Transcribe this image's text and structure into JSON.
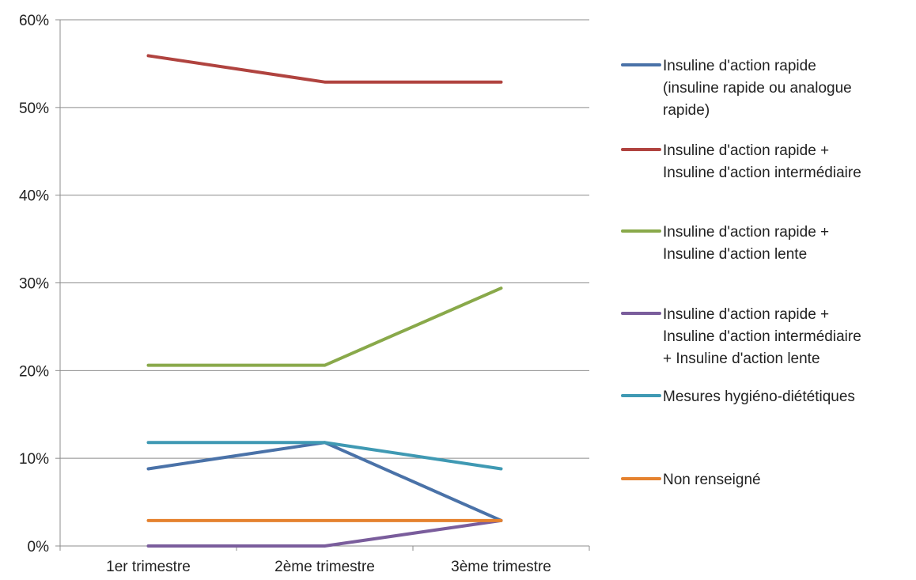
{
  "chart_data": {
    "type": "line",
    "title": "",
    "xlabel": "",
    "ylabel": "",
    "categories": [
      "1er trimestre",
      "2ème trimestre",
      "3ème trimestre"
    ],
    "ylim": [
      0,
      60
    ],
    "yticks": [
      "0%",
      "10%",
      "20%",
      "30%",
      "40%",
      "50%",
      "60%"
    ],
    "grid": true,
    "legend_position": "right",
    "series": [
      {
        "name": "Insuline d'action rapide (insuline rapide ou analogue rapide)",
        "legend_lines": [
          "Insuline d'action rapide",
          "(insuline rapide ou analogue",
          "rapide)"
        ],
        "color": "#4a72a8",
        "values": [
          8.8,
          11.8,
          2.9
        ]
      },
      {
        "name": "Insuline d'action rapide + Insuline d'action intermédiaire",
        "legend_lines": [
          "Insuline d'action rapide +",
          "Insuline d'action intermédiaire"
        ],
        "color": "#b0433f",
        "values": [
          55.9,
          52.9,
          52.9
        ]
      },
      {
        "name": "Insuline d'action rapide + Insuline d'action lente",
        "legend_lines": [
          "Insuline d'action rapide +",
          "Insuline d'action lente"
        ],
        "color": "#89a94a",
        "values": [
          20.6,
          20.6,
          29.4
        ]
      },
      {
        "name": "Insuline d'action rapide + Insuline d'action intermédiaire + Insuline d'action lente",
        "legend_lines": [
          "Insuline d'action rapide +",
          "Insuline d'action intermédiaire",
          "+ Insuline d'action lente"
        ],
        "color": "#7a5d9c",
        "values": [
          0,
          0,
          2.9
        ]
      },
      {
        "name": "Mesures hygiéno-diététiques",
        "legend_lines": [
          "Mesures hygiéno-diététiques"
        ],
        "color": "#3f99b3",
        "values": [
          11.8,
          11.8,
          8.8
        ]
      },
      {
        "name": "Non renseigné",
        "legend_lines": [
          "Non renseigné"
        ],
        "color": "#e5822f",
        "values": [
          2.9,
          2.9,
          2.9
        ]
      }
    ]
  }
}
